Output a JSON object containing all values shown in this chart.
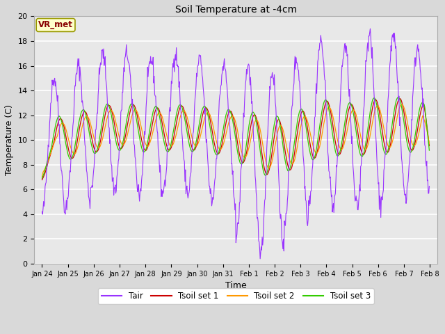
{
  "title": "Soil Temperature at -4cm",
  "xlabel": "Time",
  "ylabel": "Temperature (C)",
  "ylim": [
    0,
    20
  ],
  "figsize": [
    6.4,
    4.8
  ],
  "dpi": 100,
  "background_color": "#d9d9d9",
  "plot_bg_color": "#e8e8e8",
  "grid_color": "#ffffff",
  "colors": {
    "Tair": "#9933ff",
    "Tsoil_set1": "#cc0000",
    "Tsoil_set2": "#ff9900",
    "Tsoil_set3": "#33cc00"
  },
  "legend_labels": [
    "Tair",
    "Tsoil set 1",
    "Tsoil set 2",
    "Tsoil set 3"
  ],
  "annotation_text": "VR_met",
  "annotation_bg": "#ffffcc",
  "annotation_border": "#999900",
  "x_tick_labels": [
    "Jan 24",
    "Jan 25",
    "Jan 26",
    "Jan 27",
    "Jan 28",
    "Jan 29",
    "Jan 30",
    "Jan 31",
    "Feb 1",
    "Feb 2",
    "Feb 3",
    "Feb 4",
    "Feb 5",
    "Feb 6",
    "Feb 7",
    "Feb 8"
  ],
  "n_per_day": 48,
  "n_days": 16,
  "seed": 42
}
